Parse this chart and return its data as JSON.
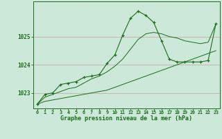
{
  "hours": [
    0,
    1,
    2,
    3,
    4,
    5,
    6,
    7,
    8,
    9,
    10,
    11,
    12,
    13,
    14,
    15,
    16,
    17,
    18,
    19,
    20,
    21,
    22,
    23
  ],
  "pressure_main": [
    1022.6,
    1022.95,
    1023.0,
    1023.3,
    1023.35,
    1023.4,
    1023.55,
    1023.6,
    1023.65,
    1024.05,
    1024.35,
    1025.05,
    1025.65,
    1025.9,
    1025.75,
    1025.5,
    1024.85,
    1024.2,
    1024.1,
    1024.1,
    1024.1,
    1024.1,
    1024.15,
    1025.45
  ],
  "pressure_min": [
    1022.6,
    1022.7,
    1022.75,
    1022.8,
    1022.85,
    1022.9,
    1022.95,
    1023.0,
    1023.05,
    1023.1,
    1023.2,
    1023.3,
    1023.4,
    1023.5,
    1023.6,
    1023.7,
    1023.8,
    1023.9,
    1024.0,
    1024.1,
    1024.2,
    1024.3,
    1024.4,
    1024.5
  ],
  "pressure_max": [
    1022.6,
    1022.85,
    1022.95,
    1023.05,
    1023.15,
    1023.2,
    1023.35,
    1023.5,
    1023.6,
    1023.75,
    1023.95,
    1024.2,
    1024.55,
    1024.9,
    1025.1,
    1025.15,
    1025.1,
    1025.0,
    1024.95,
    1024.85,
    1024.8,
    1024.75,
    1024.8,
    1025.45
  ],
  "line_color": "#1a6b1a",
  "bg_color": "#cce8d8",
  "grid_color_h": "#c0d0c0",
  "grid_color_v": "#d0e4d8",
  "ylabel_values": [
    1023,
    1024,
    1025
  ],
  "xlabel": "Graphe pression niveau de la mer (hPa)",
  "ylim_min": 1022.45,
  "ylim_max": 1026.25,
  "figsize": [
    3.2,
    2.0
  ],
  "dpi": 100
}
